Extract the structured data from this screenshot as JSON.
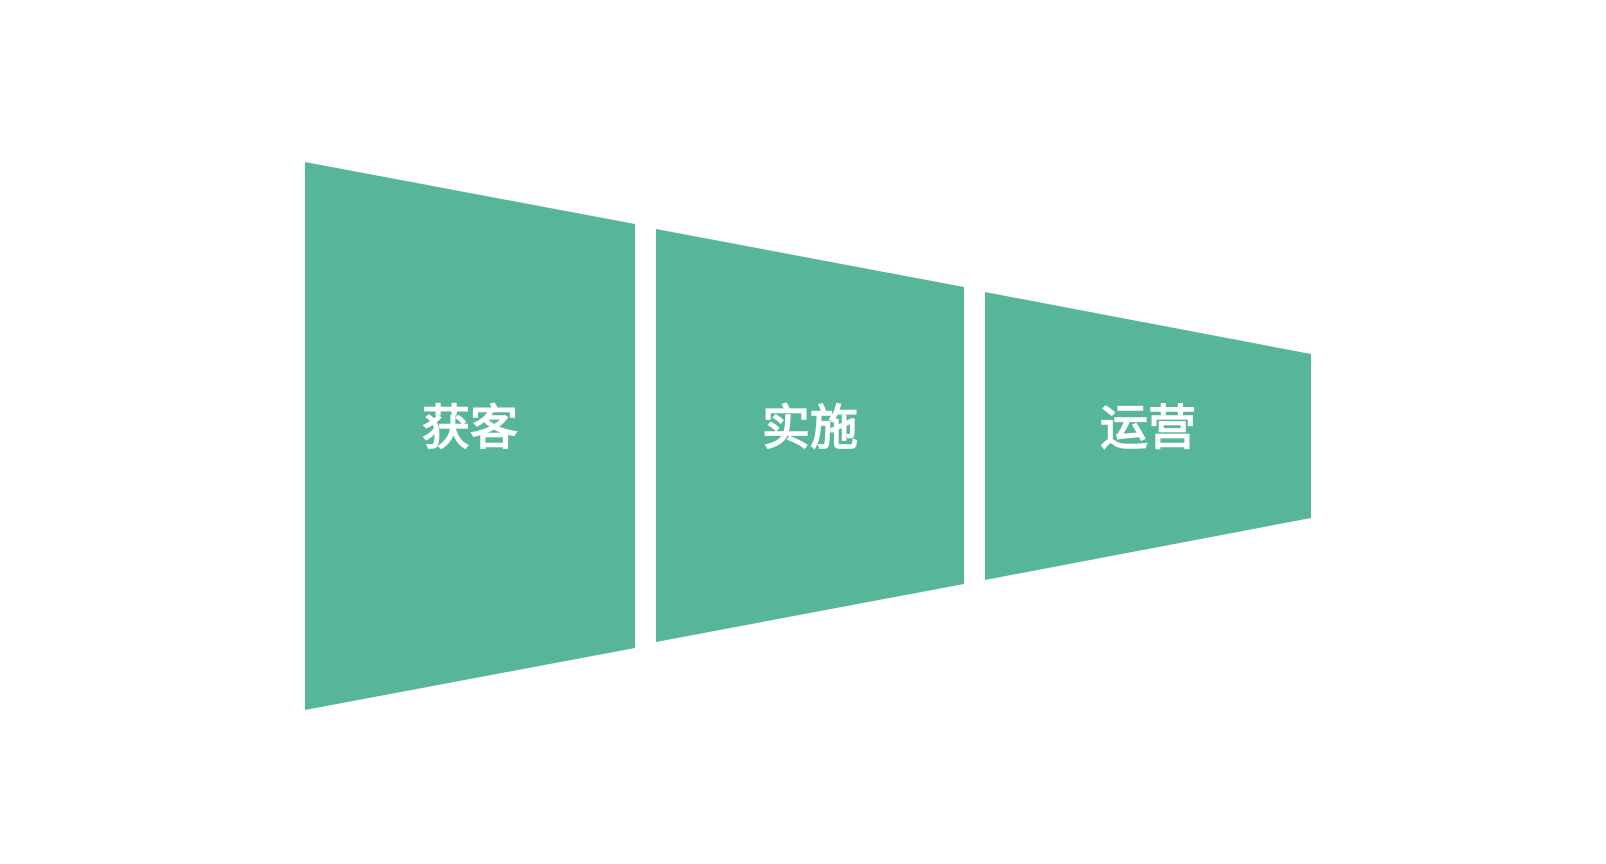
{
  "diagram": {
    "type": "funnel",
    "fill_color": "#57B59A",
    "label_color": "#FFFFFF",
    "background_color": "#FFFFFF",
    "stages": [
      {
        "label": "获客"
      },
      {
        "label": "实施"
      },
      {
        "label": "运营"
      }
    ]
  }
}
